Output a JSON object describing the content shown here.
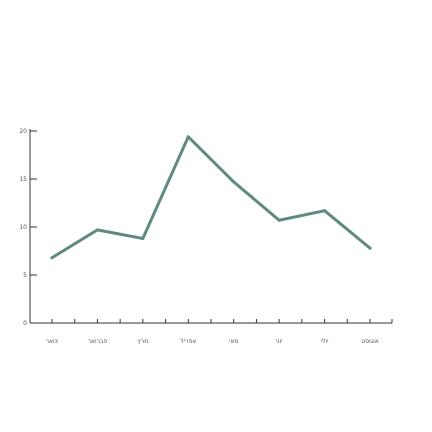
{
  "chart_data": {
    "type": "line",
    "categories": [
      "ינואר",
      "פברואר",
      "מרץ",
      "אפריל",
      "מאי",
      "יוני",
      "יולי",
      "אוגוסט"
    ],
    "series": [
      {
        "values": [
          6.8,
          9.7,
          8.8,
          19.4,
          14.7,
          10.7,
          11.7,
          7.8
        ]
      }
    ],
    "ylim": [
      0,
      20
    ],
    "yticks": [
      0,
      5,
      10,
      15,
      20
    ],
    "grid": false,
    "colors": {
      "line": "#5f8a82",
      "axis": "#333333",
      "tick_text": "#555555"
    }
  }
}
